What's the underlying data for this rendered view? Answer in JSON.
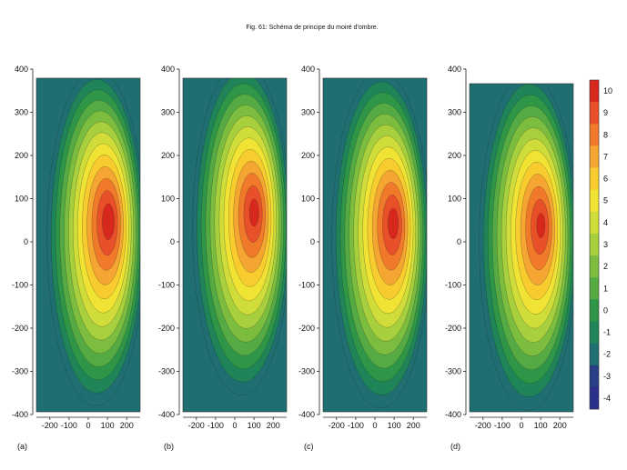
{
  "caption": "Fig. 61: Schéma de principe du moiré d'ombre.",
  "chart_data": {
    "type": "heatmap",
    "x_ticks": [
      "-200",
      "-100",
      "0",
      "100",
      "200"
    ],
    "y_ticks": [
      "400",
      "300",
      "200",
      "100",
      "0",
      "-100",
      "-200",
      "-300",
      "-400"
    ],
    "xlim": [
      -270,
      270
    ],
    "ylim": [
      -400,
      400
    ],
    "colorbar": {
      "levels": [
        "10",
        "9",
        "8",
        "7",
        "6",
        "5",
        "4",
        "3",
        "2",
        "1",
        "0",
        "-1",
        "-2",
        "-3",
        "-4"
      ],
      "colors": [
        "#d8281e",
        "#e8502a",
        "#f07a2a",
        "#f5a531",
        "#f8cc2e",
        "#f0e334",
        "#cfdc3a",
        "#a8cf3d",
        "#7cbd3f",
        "#55aa44",
        "#2f9547",
        "#1f8458",
        "#1f6e72",
        "#273f85",
        "#2a2f8c"
      ]
    },
    "panels": [
      {
        "label": "(a)",
        "center": [
          110,
          50
        ],
        "rx": 255,
        "ry": 390,
        "peak": 10.5
      },
      {
        "label": "(b)",
        "center": [
          105,
          70
        ],
        "rx": 255,
        "ry": 385,
        "peak": 10.2
      },
      {
        "label": "(c)",
        "center": [
          100,
          45
        ],
        "rx": 255,
        "ry": 390,
        "peak": 10.3
      },
      {
        "label": "(d)",
        "center": [
          105,
          40
        ],
        "rx": 255,
        "ry": 390,
        "peak": 10.1
      }
    ]
  }
}
